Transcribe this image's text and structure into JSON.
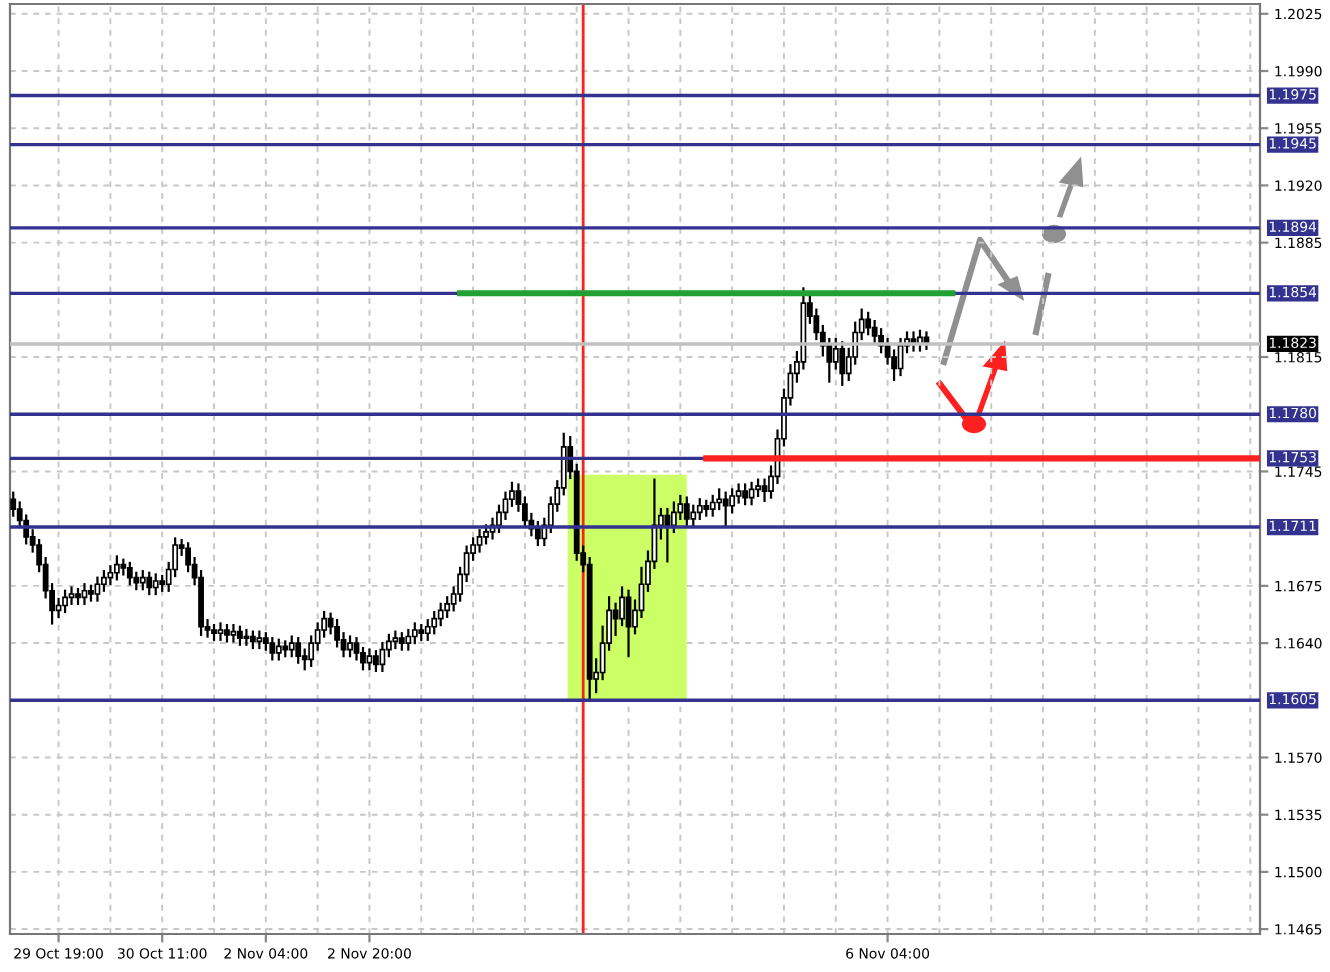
{
  "chart_data": {
    "type": "candlestick",
    "categories": [
      null,
      null,
      null,
      null,
      null,
      null,
      null,
      "29 Oct 19:00",
      null,
      null,
      null,
      null,
      null,
      null,
      null,
      null,
      null,
      null,
      null,
      null,
      null,
      null,
      null,
      "30 Oct 11:00",
      null,
      null,
      null,
      null,
      null,
      null,
      null,
      null,
      null,
      null,
      null,
      null,
      null,
      null,
      null,
      "2 Nov 04:00",
      null,
      null,
      null,
      null,
      null,
      null,
      null,
      null,
      null,
      null,
      null,
      null,
      null,
      null,
      null,
      "2 Nov 20:00",
      null,
      null,
      null,
      null,
      null,
      null,
      null,
      null,
      null,
      null,
      null,
      null,
      null,
      null,
      null,
      null,
      null,
      null,
      null,
      null,
      null,
      null,
      null,
      null,
      null,
      null,
      null,
      null,
      null,
      null,
      null,
      null,
      null,
      null,
      null,
      null,
      null,
      null,
      null,
      null,
      null,
      null,
      null,
      null,
      null,
      null,
      null,
      null,
      null,
      null,
      null,
      null,
      null,
      null,
      null,
      null,
      null,
      null,
      null,
      null,
      null,
      null,
      null,
      null,
      null,
      null,
      null,
      null,
      null,
      null,
      null,
      null,
      null,
      null,
      null,
      null,
      null,
      null,
      null,
      "6 Nov 04:00",
      null,
      null,
      null,
      null,
      null,
      null,
      null,
      null,
      null,
      null,
      null,
      null,
      null,
      null,
      null,
      null,
      null,
      null,
      null,
      null,
      null,
      null,
      null,
      null,
      null,
      null,
      null,
      null,
      null,
      null,
      null,
      null,
      null,
      null,
      null,
      null,
      null,
      null,
      null,
      null,
      null,
      null,
      null,
      null,
      null,
      null,
      null,
      null,
      null,
      null,
      null,
      null,
      null,
      null,
      null,
      null,
      null
    ],
    "ohlc": [
      [
        1.1728,
        1.1732,
        1.1718,
        1.1722
      ],
      [
        1.1722,
        1.1726,
        1.1711,
        1.1715
      ],
      [
        1.1715,
        1.1718,
        1.1701,
        1.1705
      ],
      [
        1.1705,
        1.1709,
        1.1696,
        1.17
      ],
      [
        1.17,
        1.1703,
        1.1684,
        1.1688
      ],
      [
        1.1688,
        1.1692,
        1.1668,
        1.1672
      ],
      [
        1.1672,
        1.1676,
        1.1652,
        1.166
      ],
      [
        1.166,
        1.1667,
        1.1656,
        1.1663
      ],
      [
        1.1663,
        1.1672,
        1.1659,
        1.1668
      ],
      [
        1.1668,
        1.1674,
        1.1664,
        1.167
      ],
      [
        1.167,
        1.1673,
        1.1664,
        1.1668
      ],
      [
        1.1668,
        1.1676,
        1.1664,
        1.1672
      ],
      [
        1.1672,
        1.1675,
        1.1666,
        1.167
      ],
      [
        1.167,
        1.168,
        1.1666,
        1.1676
      ],
      [
        1.1676,
        1.1684,
        1.1672,
        1.168
      ],
      [
        1.168,
        1.1687,
        1.1676,
        1.1683
      ],
      [
        1.1683,
        1.1693,
        1.1679,
        1.1688
      ],
      [
        1.1688,
        1.1691,
        1.1682,
        1.1686
      ],
      [
        1.1686,
        1.1689,
        1.1676,
        1.168
      ],
      [
        1.168,
        1.1683,
        1.1673,
        1.1677
      ],
      [
        1.1677,
        1.1684,
        1.1673,
        1.168
      ],
      [
        1.168,
        1.1683,
        1.167,
        1.1674
      ],
      [
        1.1674,
        1.1682,
        1.167,
        1.1678
      ],
      [
        1.1678,
        1.1681,
        1.1672,
        1.1676
      ],
      [
        1.1676,
        1.1689,
        1.1672,
        1.1685
      ],
      [
        1.1685,
        1.1704,
        1.1681,
        1.17
      ],
      [
        1.17,
        1.1703,
        1.1694,
        1.1698
      ],
      [
        1.1698,
        1.1701,
        1.1684,
        1.1688
      ],
      [
        1.1688,
        1.1692,
        1.1676,
        1.168
      ],
      [
        1.168,
        1.1684,
        1.1645,
        1.165
      ],
      [
        1.165,
        1.1654,
        1.1644,
        1.1648
      ],
      [
        1.1648,
        1.1651,
        1.1642,
        1.1646
      ],
      [
        1.1646,
        1.1652,
        1.1642,
        1.1648
      ],
      [
        1.1648,
        1.1651,
        1.1641,
        1.1645
      ],
      [
        1.1645,
        1.1651,
        1.1641,
        1.1647
      ],
      [
        1.1647,
        1.165,
        1.1639,
        1.1643
      ],
      [
        1.1643,
        1.1648,
        1.1639,
        1.1644
      ],
      [
        1.1644,
        1.1647,
        1.1637,
        1.1641
      ],
      [
        1.1641,
        1.1647,
        1.1637,
        1.1643
      ],
      [
        1.1643,
        1.1646,
        1.1636,
        1.164
      ],
      [
        1.164,
        1.1643,
        1.163,
        1.1634
      ],
      [
        1.1634,
        1.1642,
        1.163,
        1.1638
      ],
      [
        1.1638,
        1.1641,
        1.1632,
        1.1636
      ],
      [
        1.1636,
        1.1644,
        1.1632,
        1.164
      ],
      [
        1.164,
        1.1643,
        1.1628,
        1.1632
      ],
      [
        1.1632,
        1.1636,
        1.1624,
        1.163
      ],
      [
        1.163,
        1.1644,
        1.1626,
        1.164
      ],
      [
        1.164,
        1.1652,
        1.1636,
        1.1648
      ],
      [
        1.1648,
        1.1659,
        1.1644,
        1.1655
      ],
      [
        1.1655,
        1.1658,
        1.1646,
        1.165
      ],
      [
        1.165,
        1.1654,
        1.1638,
        1.1642
      ],
      [
        1.1642,
        1.1646,
        1.1632,
        1.1636
      ],
      [
        1.1636,
        1.1644,
        1.1632,
        1.164
      ],
      [
        1.164,
        1.1643,
        1.163,
        1.1634
      ],
      [
        1.1634,
        1.1637,
        1.1624,
        1.1628
      ],
      [
        1.1628,
        1.1636,
        1.1624,
        1.1632
      ],
      [
        1.1632,
        1.1635,
        1.1623,
        1.1627
      ],
      [
        1.1627,
        1.164,
        1.1623,
        1.1636
      ],
      [
        1.1636,
        1.1645,
        1.1632,
        1.1641
      ],
      [
        1.1641,
        1.1647,
        1.1637,
        1.1643
      ],
      [
        1.1643,
        1.1646,
        1.1636,
        1.164
      ],
      [
        1.164,
        1.1648,
        1.1636,
        1.1644
      ],
      [
        1.1644,
        1.1652,
        1.164,
        1.1648
      ],
      [
        1.1648,
        1.1651,
        1.1642,
        1.1646
      ],
      [
        1.1646,
        1.1654,
        1.1642,
        1.165
      ],
      [
        1.165,
        1.1659,
        1.1646,
        1.1655
      ],
      [
        1.1655,
        1.1664,
        1.1651,
        1.166
      ],
      [
        1.166,
        1.1668,
        1.1656,
        1.1664
      ],
      [
        1.1664,
        1.1674,
        1.166,
        1.167
      ],
      [
        1.167,
        1.1686,
        1.1666,
        1.1682
      ],
      [
        1.1682,
        1.1699,
        1.1678,
        1.1695
      ],
      [
        1.1695,
        1.1704,
        1.1691,
        1.17
      ],
      [
        1.17,
        1.1709,
        1.1696,
        1.1705
      ],
      [
        1.1705,
        1.1712,
        1.1701,
        1.1708
      ],
      [
        1.1708,
        1.1716,
        1.1704,
        1.1712
      ],
      [
        1.1712,
        1.1724,
        1.1708,
        1.172
      ],
      [
        1.172,
        1.1732,
        1.1716,
        1.1728
      ],
      [
        1.1728,
        1.1738,
        1.1724,
        1.1733
      ],
      [
        1.1733,
        1.1737,
        1.1721,
        1.1725
      ],
      [
        1.1725,
        1.1729,
        1.1711,
        1.1715
      ],
      [
        1.1715,
        1.1719,
        1.1706,
        1.171
      ],
      [
        1.171,
        1.1714,
        1.17,
        1.1704
      ],
      [
        1.1704,
        1.1716,
        1.17,
        1.1712
      ],
      [
        1.1712,
        1.1729,
        1.1708,
        1.1725
      ],
      [
        1.1725,
        1.1739,
        1.1721,
        1.1735
      ],
      [
        1.1735,
        1.1768,
        1.1731,
        1.176
      ],
      [
        1.176,
        1.1766,
        1.1741,
        1.1745
      ],
      [
        1.1745,
        1.1749,
        1.1691,
        1.1695
      ],
      [
        1.1695,
        1.1699,
        1.1684,
        1.1688
      ],
      [
        1.1688,
        1.1692,
        1.1605,
        1.1618
      ],
      [
        1.1618,
        1.163,
        1.161,
        1.1622
      ],
      [
        1.1622,
        1.165,
        1.1618,
        1.164
      ],
      [
        1.164,
        1.1668,
        1.1636,
        1.166
      ],
      [
        1.166,
        1.1664,
        1.1645,
        1.1655
      ],
      [
        1.1655,
        1.1674,
        1.1651,
        1.1668
      ],
      [
        1.1668,
        1.1672,
        1.1632,
        1.165
      ],
      [
        1.165,
        1.1666,
        1.1646,
        1.166
      ],
      [
        1.166,
        1.1686,
        1.1656,
        1.1676
      ],
      [
        1.1676,
        1.1696,
        1.1672,
        1.169
      ],
      [
        1.169,
        1.174,
        1.1686,
        1.1712
      ],
      [
        1.1712,
        1.1722,
        1.1704,
        1.1718
      ],
      [
        1.1718,
        1.1722,
        1.169,
        1.1712
      ],
      [
        1.1712,
        1.1726,
        1.1708,
        1.172
      ],
      [
        1.172,
        1.173,
        1.1716,
        1.1725
      ],
      [
        1.1725,
        1.1729,
        1.1712,
        1.1716
      ],
      [
        1.1716,
        1.1724,
        1.1712,
        1.172
      ],
      [
        1.172,
        1.1728,
        1.1716,
        1.1724
      ],
      [
        1.1724,
        1.1727,
        1.1718,
        1.1722
      ],
      [
        1.1722,
        1.173,
        1.1718,
        1.1726
      ],
      [
        1.1726,
        1.1734,
        1.1722,
        1.1728
      ],
      [
        1.1728,
        1.1732,
        1.1711,
        1.1724
      ],
      [
        1.1724,
        1.1734,
        1.172,
        1.173
      ],
      [
        1.173,
        1.1737,
        1.1726,
        1.1733
      ],
      [
        1.1733,
        1.1737,
        1.1725,
        1.1729
      ],
      [
        1.1729,
        1.1738,
        1.1725,
        1.1734
      ],
      [
        1.1734,
        1.174,
        1.173,
        1.1736
      ],
      [
        1.1736,
        1.174,
        1.1727,
        1.1733
      ],
      [
        1.1733,
        1.1748,
        1.1729,
        1.1742
      ],
      [
        1.1742,
        1.177,
        1.1738,
        1.1765
      ],
      [
        1.1765,
        1.1795,
        1.1761,
        1.179
      ],
      [
        1.179,
        1.181,
        1.1786,
        1.1805
      ],
      [
        1.1805,
        1.1818,
        1.18,
        1.1812
      ],
      [
        1.1812,
        1.1857,
        1.1808,
        1.1848
      ],
      [
        1.1848,
        1.1852,
        1.1836,
        1.184
      ],
      [
        1.184,
        1.1844,
        1.1826,
        1.183
      ],
      [
        1.183,
        1.1834,
        1.1816,
        1.1822
      ],
      [
        1.1822,
        1.1826,
        1.18,
        1.1812
      ],
      [
        1.1812,
        1.1826,
        1.1808,
        1.182
      ],
      [
        1.182,
        1.1824,
        1.1798,
        1.1805
      ],
      [
        1.1805,
        1.182,
        1.1801,
        1.1815
      ],
      [
        1.1815,
        1.1836,
        1.1811,
        1.183
      ],
      [
        1.183,
        1.1844,
        1.1826,
        1.1838
      ],
      [
        1.1838,
        1.1842,
        1.1829,
        1.1833
      ],
      [
        1.1833,
        1.1837,
        1.1824,
        1.1828
      ],
      [
        1.1828,
        1.1832,
        1.1818,
        1.1822
      ],
      [
        1.1822,
        1.1826,
        1.1811,
        1.1815
      ],
      [
        1.1815,
        1.1819,
        1.1801,
        1.1808
      ],
      [
        1.1808,
        1.1826,
        1.1804,
        1.1822
      ],
      [
        1.1822,
        1.183,
        1.1818,
        1.1826
      ],
      [
        1.1826,
        1.183,
        1.1819,
        1.1823
      ],
      [
        1.1823,
        1.1831,
        1.1819,
        1.1827
      ],
      [
        1.1827,
        1.183,
        1.182,
        1.1823
      ],
      null,
      null,
      null,
      null,
      null,
      null,
      null,
      null,
      null,
      null,
      null,
      null,
      null,
      null,
      null,
      null,
      null,
      null,
      null,
      null,
      null,
      null,
      null,
      null,
      null,
      null,
      null,
      null,
      null,
      null,
      null,
      null,
      null,
      null,
      null,
      null,
      null,
      null,
      null,
      null,
      null,
      null,
      null,
      null,
      null,
      null,
      null,
      null,
      null,
      null,
      null
    ],
    "series": [
      {
        "type": "line",
        "color": "#22a033",
        "values": [
          null,
          null,
          null,
          null,
          null,
          null,
          null,
          null,
          null,
          null,
          null,
          null,
          null,
          null,
          null,
          null,
          null,
          null,
          null,
          null,
          null,
          null,
          null,
          null,
          null,
          null,
          null,
          null,
          null,
          null,
          null,
          null,
          null,
          null,
          null,
          null,
          null,
          null,
          null,
          null,
          null,
          null,
          null,
          null,
          null,
          null,
          null,
          null,
          null,
          null,
          null,
          null,
          null,
          null,
          null,
          null,
          null,
          null,
          null,
          null,
          null,
          null,
          null,
          null,
          null,
          null,
          null,
          null,
          null,
          1.1854,
          1.1854,
          1.1854,
          1.1854,
          1.1854,
          1.1854,
          1.1854,
          1.1854,
          1.1854,
          1.1854,
          1.1854,
          1.1854,
          1.1854,
          1.1854,
          1.1854,
          1.1854,
          1.1854,
          1.1854,
          1.1854,
          1.1854,
          1.1854,
          1.1854,
          1.1854,
          1.1854,
          1.1854,
          1.1854,
          1.1854,
          1.1854,
          1.1854,
          1.1854,
          1.1854,
          1.1854,
          1.1854,
          1.1854,
          1.1854,
          1.1854,
          1.1854,
          1.1854,
          1.1854,
          1.1854,
          1.1854,
          1.1854,
          1.1854,
          1.1854,
          1.1854,
          1.1854,
          1.1854,
          1.1854,
          1.1854,
          1.1854,
          1.1854,
          1.1854,
          1.1854,
          1.1854,
          1.1854,
          1.1854,
          1.1854,
          1.1854,
          1.1854,
          1.1854,
          1.1854,
          1.1854,
          1.1854,
          1.1854,
          1.1854,
          1.1854,
          1.1854,
          1.1854,
          1.1854,
          1.1854,
          1.1854,
          1.1854,
          1.1854,
          1.1854,
          1.1854,
          1.1854,
          1.1854,
          null,
          null,
          null,
          null,
          null,
          null,
          null,
          null,
          null,
          null,
          null,
          null,
          null,
          null,
          null,
          null,
          null,
          null,
          null,
          null,
          null,
          null,
          null,
          null,
          null,
          null,
          null,
          null,
          null,
          null,
          null,
          null,
          null,
          null,
          null,
          null,
          null,
          null,
          null,
          null,
          null,
          null,
          null,
          null,
          null,
          null,
          null
        ]
      },
      {
        "type": "line",
        "color": "#ff2020",
        "values": [
          null,
          null,
          null,
          null,
          null,
          null,
          null,
          null,
          null,
          null,
          null,
          null,
          null,
          null,
          null,
          null,
          null,
          null,
          null,
          null,
          null,
          null,
          null,
          null,
          null,
          null,
          null,
          null,
          null,
          null,
          null,
          null,
          null,
          null,
          null,
          null,
          null,
          null,
          null,
          null,
          null,
          null,
          null,
          null,
          null,
          null,
          null,
          null,
          null,
          null,
          null,
          null,
          null,
          null,
          null,
          null,
          null,
          null,
          null,
          null,
          null,
          null,
          null,
          null,
          null,
          null,
          null,
          null,
          null,
          null,
          null,
          null,
          null,
          null,
          null,
          null,
          null,
          null,
          null,
          null,
          null,
          null,
          null,
          null,
          null,
          null,
          null,
          null,
          null,
          null,
          null,
          null,
          null,
          null,
          null,
          null,
          null,
          null,
          null,
          null,
          null,
          null,
          null,
          null,
          null,
          null,
          null,
          1.1753,
          1.1753,
          1.1753,
          1.1753,
          1.1753,
          1.1753,
          1.1753,
          1.1753,
          1.1753,
          1.1753,
          1.1753,
          1.1753,
          1.1753,
          1.1753,
          1.1753,
          1.1753,
          1.1753,
          1.1753,
          1.1753,
          1.1753,
          1.1753,
          1.1753,
          1.1753,
          1.1753,
          1.1753,
          1.1753,
          1.1753,
          1.1753,
          1.1753,
          1.1753,
          1.1753,
          1.1753,
          1.1753,
          1.1753,
          1.1753,
          1.1753,
          1.1753,
          1.1753,
          1.1753,
          1.1753,
          1.1753,
          1.1753,
          1.1753,
          1.1753,
          1.1753,
          1.1753,
          1.1753,
          1.1753,
          1.1753,
          1.1753,
          1.1753,
          1.1753,
          1.1753,
          1.1753,
          1.1753,
          1.1753,
          1.1753,
          1.1753,
          1.1753,
          1.1753,
          1.1753,
          1.1753,
          1.1753,
          1.1753,
          1.1753,
          1.1753,
          1.1753,
          1.1753,
          1.1753,
          1.1753,
          1.1753,
          1.1753,
          1.1753,
          1.1753,
          1.1753,
          1.1753,
          1.1753,
          1.1753,
          1.1753,
          1.1753,
          1.1753,
          1.1753,
          1.1753,
          1.1753,
          1.1753,
          1.1753
        ]
      }
    ],
    "ylim": [
      1.1462,
      1.2031
    ],
    "yticks": [
      {
        "value": 1.1465,
        "label": "1.1465"
      },
      {
        "value": 1.15,
        "label": "1.1500"
      },
      {
        "value": 1.1535,
        "label": "1.1535"
      },
      {
        "value": 1.157,
        "label": "1.1570"
      },
      {
        "value": 1.164,
        "label": "1.1640"
      },
      {
        "value": 1.1675,
        "label": "1.1675"
      },
      {
        "value": 1.1745,
        "label": "1.1745"
      },
      {
        "value": 1.1815,
        "label": "1.1815"
      },
      {
        "value": 1.1885,
        "label": "1.1885"
      },
      {
        "value": 1.192,
        "label": "1.1920"
      },
      {
        "value": 1.1955,
        "label": "1.1955"
      },
      {
        "value": 1.199,
        "label": "1.1990"
      },
      {
        "value": 1.2025,
        "label": "1.2025"
      }
    ],
    "ref_lines": [
      {
        "axis": "y",
        "value": 1.1975,
        "label": "1.1975",
        "color": "#33338f"
      },
      {
        "axis": "y",
        "value": 1.1945,
        "label": "1.1945",
        "color": "#33338f"
      },
      {
        "axis": "y",
        "value": 1.1894,
        "label": "1.1894",
        "color": "#33338f"
      },
      {
        "axis": "y",
        "value": 1.1854,
        "label": "1.1854",
        "color": "#33338f"
      },
      {
        "axis": "y",
        "value": 1.1823,
        "label": "1.1823",
        "color": "#c0c0c0"
      },
      {
        "axis": "y",
        "value": 1.178,
        "label": "1.1780",
        "color": "#33338f"
      },
      {
        "axis": "y",
        "value": 1.1753,
        "label": "1.1753",
        "color": "#33338f"
      },
      {
        "axis": "y",
        "value": 1.1711,
        "label": "1.1711",
        "color": "#33338f"
      },
      {
        "axis": "y",
        "value": 1.1605,
        "label": "1.1605",
        "color": "#33338f"
      }
    ],
    "bands": [
      {
        "axis": "y",
        "from": 1.1605,
        "to": 1.1743,
        "color": "#ccff66"
      }
    ],
    "grid": true
  }
}
